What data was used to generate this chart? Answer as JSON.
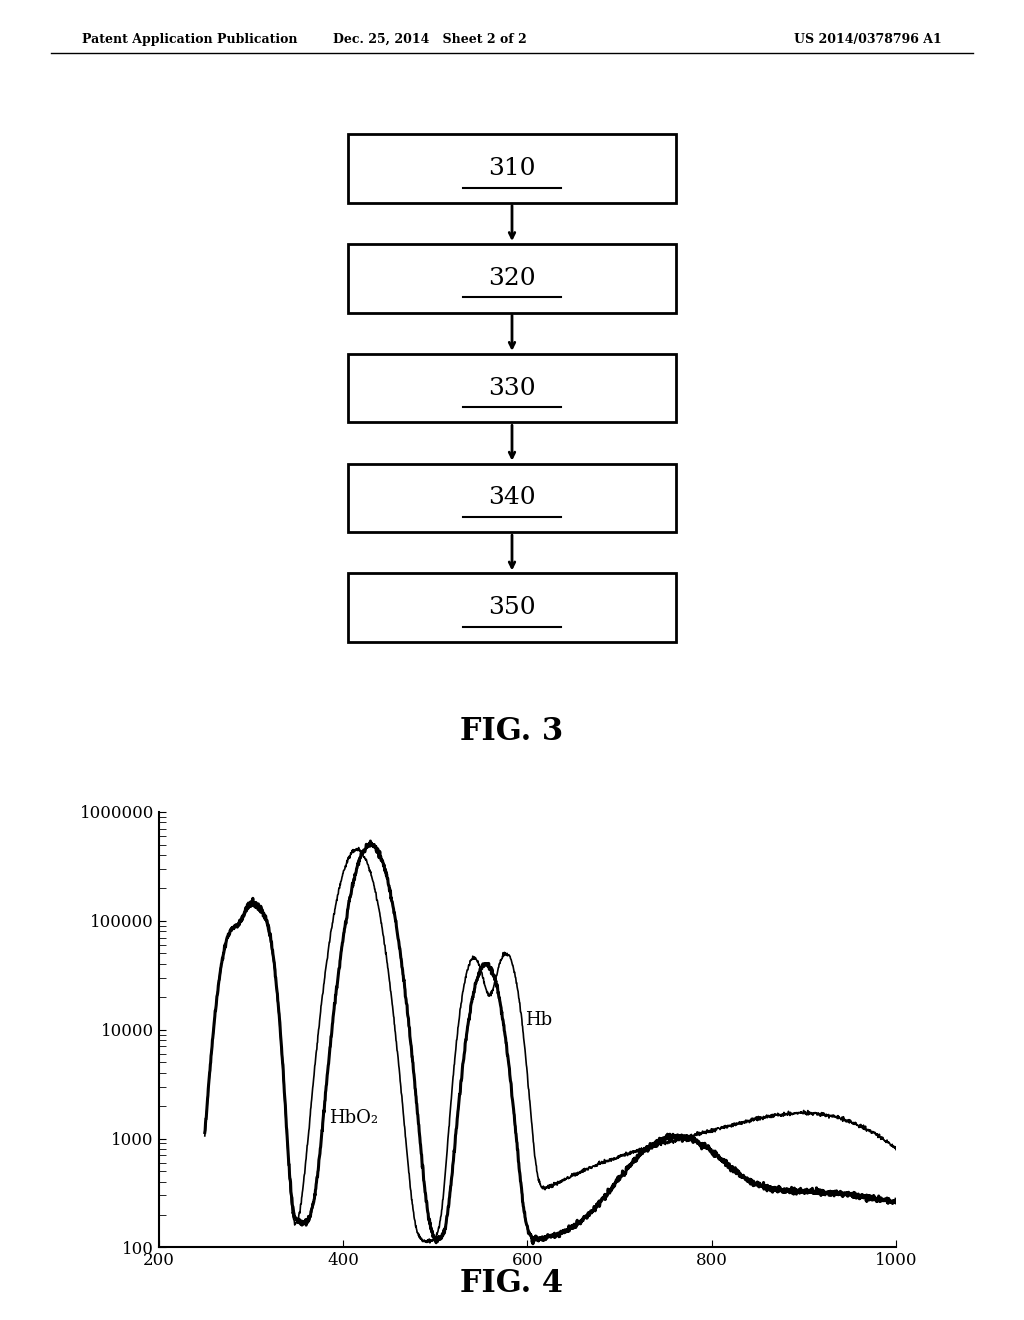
{
  "header_left": "Patent Application Publication",
  "header_mid": "Dec. 25, 2014   Sheet 2 of 2",
  "header_right": "US 2014/0378796 A1",
  "fig3_boxes": [
    "310",
    "320",
    "330",
    "340",
    "350"
  ],
  "fig3_label": "FIG. 3",
  "fig4_label": "FIG. 4",
  "fig4_xlabel_ticks": [
    200,
    400,
    600,
    800,
    1000
  ],
  "fig4_ylabel_ticks": [
    100,
    1000,
    10000,
    100000,
    1000000
  ],
  "fig4_ylabel_labels": [
    "100",
    "1000",
    "10000",
    "100000",
    "1000000"
  ],
  "fig4_xlim": [
    200,
    1000
  ],
  "fig4_ylim": [
    100,
    1000000
  ],
  "hb_label": "Hb",
  "hbo2_label": "HbO₂",
  "background_color": "#ffffff",
  "box_color": "#000000",
  "line_color": "#000000"
}
